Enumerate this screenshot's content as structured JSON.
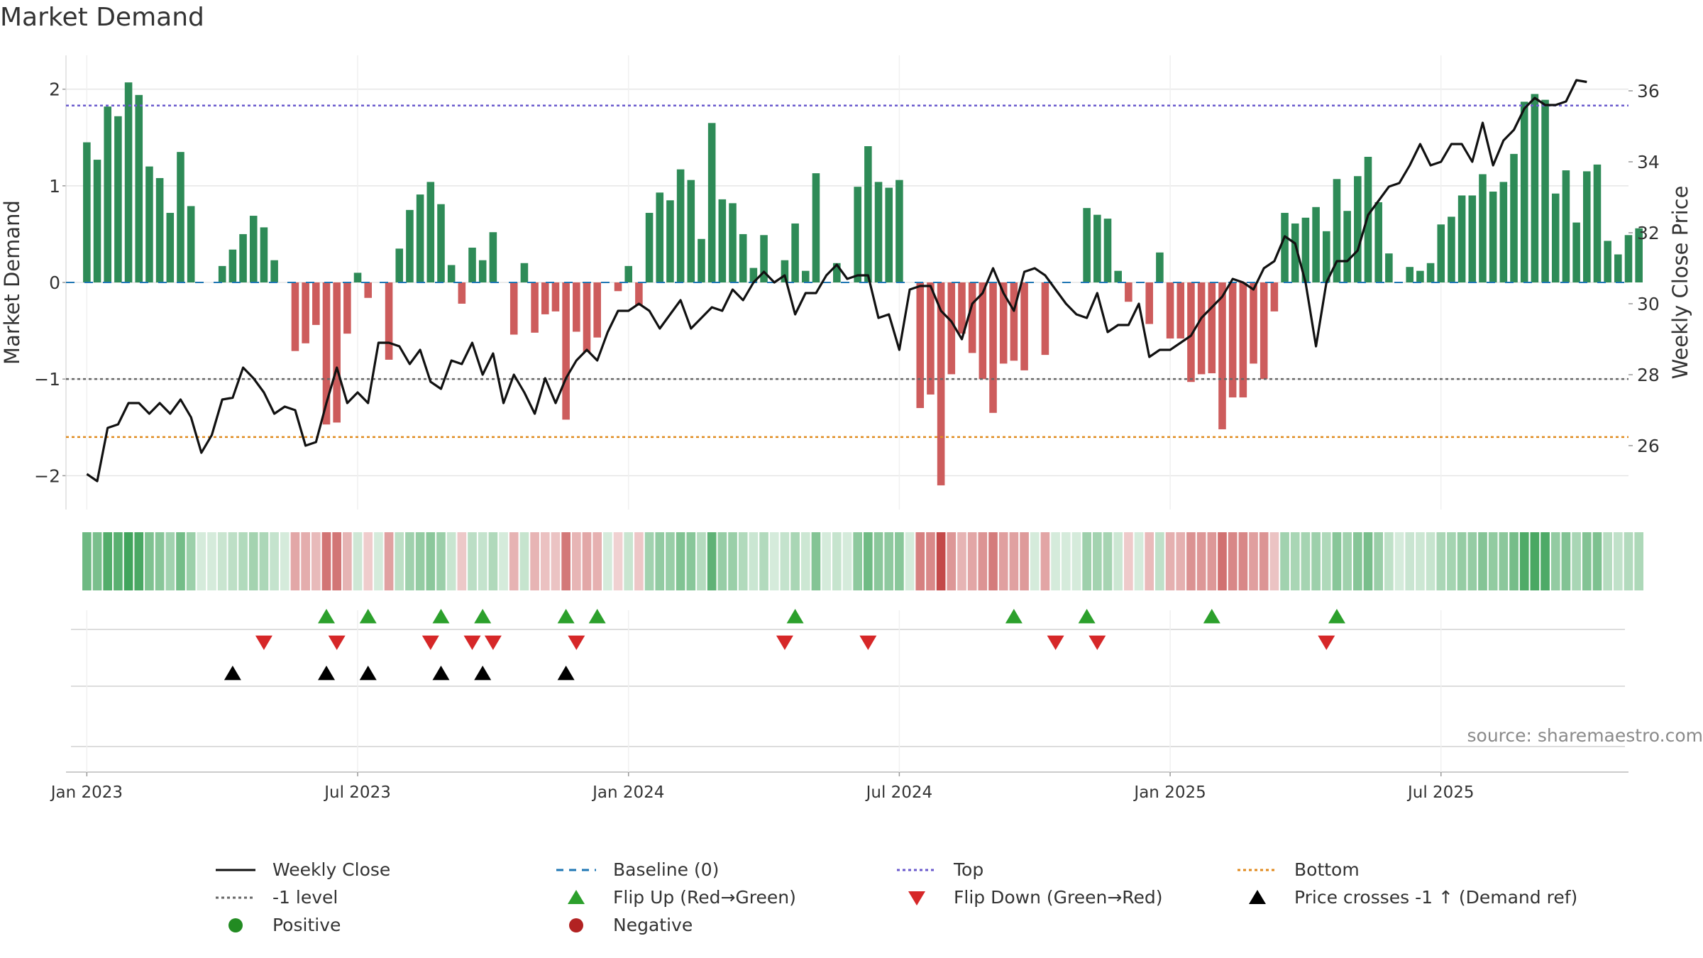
{
  "title": "Market Demand",
  "source": "source: sharemaestro.com",
  "chart_data": {
    "type": "bar+line",
    "title": "Market Demand",
    "xlabel": "",
    "ylabel_left": "Market Demand",
    "ylabel_right": "Weekly Close Price",
    "x_tick_labels": [
      "Jan 2023",
      "Jul 2023",
      "Jan 2024",
      "Jul 2024",
      "Jan 2025",
      "Jul 2025"
    ],
    "x_tick_weeks": [
      0,
      26,
      52,
      78,
      104,
      130
    ],
    "first_week_offset": -1.5,
    "ylim_left": [
      -2.35,
      2.35
    ],
    "y_ticks_left": [
      2,
      1,
      0,
      -1,
      -2
    ],
    "y_tick_labels_left": [
      "2",
      "1",
      "0",
      "−1",
      "−2"
    ],
    "ylim_right": [
      24.2,
      37.0
    ],
    "y_ticks_right": [
      36,
      34,
      32,
      30,
      28,
      26
    ],
    "demand": [
      1.45,
      1.27,
      1.82,
      1.72,
      2.07,
      1.94,
      1.2,
      1.08,
      0.72,
      1.35,
      0.79,
      0.0,
      0.0,
      0.17,
      0.34,
      0.5,
      0.69,
      0.57,
      0.23,
      0.0,
      -0.71,
      -0.63,
      -0.44,
      -1.47,
      -1.45,
      -0.53,
      0.1,
      -0.16,
      0.0,
      -0.8,
      0.35,
      0.75,
      0.91,
      1.04,
      0.81,
      0.18,
      -0.22,
      0.36,
      0.23,
      0.52,
      0.0,
      -0.54,
      0.2,
      -0.52,
      -0.33,
      -0.3,
      -1.42,
      -0.51,
      -0.72,
      -0.57,
      0.0,
      -0.09,
      0.17,
      -0.24,
      0.72,
      0.93,
      0.85,
      1.17,
      1.06,
      0.45,
      1.65,
      0.86,
      0.82,
      0.5,
      0.15,
      0.49,
      0.0,
      0.23,
      0.61,
      0.12,
      1.13,
      0.0,
      0.2,
      0.0,
      0.99,
      1.41,
      1.04,
      0.98,
      1.06,
      0.0,
      -1.3,
      -1.16,
      -2.1,
      -0.95,
      -0.53,
      -0.73,
      -1.0,
      -1.35,
      -0.84,
      -0.81,
      -0.91,
      -0.0,
      -0.75,
      0.0,
      0.0,
      0.0,
      0.77,
      0.7,
      0.66,
      0.12,
      -0.2,
      0.0,
      -0.43,
      0.31,
      -0.58,
      -0.58,
      -1.03,
      -0.95,
      -0.94,
      -1.52,
      -1.19,
      -1.19,
      -0.84,
      -1.0,
      -0.3,
      0.72,
      0.61,
      0.67,
      0.78,
      0.53,
      1.07,
      0.74,
      1.1,
      1.3,
      0.83,
      0.3,
      0.0,
      0.16,
      0.12,
      0.2,
      0.6,
      0.68,
      0.9,
      0.9,
      1.12,
      0.94,
      1.04,
      1.33,
      1.87,
      1.95,
      1.89,
      0.92,
      1.16,
      0.62,
      1.15,
      1.22,
      0.43,
      0.29,
      0.49,
      0.56
    ],
    "weekly_close": [
      25.2,
      25.0,
      26.5,
      26.6,
      27.2,
      27.2,
      26.9,
      27.2,
      26.9,
      27.3,
      26.8,
      25.8,
      26.3,
      27.3,
      27.35,
      28.2,
      27.9,
      27.5,
      26.9,
      27.1,
      27.0,
      26.0,
      26.1,
      27.2,
      28.2,
      27.2,
      27.5,
      27.2,
      28.9,
      28.9,
      28.8,
      28.3,
      28.7,
      27.8,
      27.6,
      28.4,
      28.3,
      28.9,
      28.0,
      28.6,
      27.2,
      28.0,
      27.5,
      26.9,
      27.9,
      27.2,
      27.9,
      28.4,
      28.7,
      28.4,
      29.2,
      29.8,
      29.8,
      30.0,
      29.8,
      29.3,
      29.7,
      30.1,
      29.3,
      29.6,
      29.9,
      29.8,
      30.4,
      30.1,
      30.6,
      30.9,
      30.6,
      30.8,
      29.7,
      30.3,
      30.3,
      30.8,
      31.1,
      30.7,
      30.8,
      30.8,
      29.6,
      29.7,
      28.7,
      30.4,
      30.5,
      30.5,
      29.8,
      29.5,
      29.0,
      30.0,
      30.3,
      31.0,
      30.3,
      29.8,
      30.9,
      31.0,
      30.8,
      30.4,
      30.0,
      29.7,
      29.6,
      30.3,
      29.2,
      29.4,
      29.4,
      30.0,
      28.5,
      28.7,
      28.7,
      28.9,
      29.1,
      29.6,
      29.9,
      30.2,
      30.7,
      30.6,
      30.4,
      31.0,
      31.2,
      31.9,
      31.7,
      30.6,
      28.8,
      30.6,
      31.2,
      31.2,
      31.5,
      32.5,
      32.9,
      33.3,
      33.4,
      33.9,
      34.5,
      33.9,
      34.0,
      34.5,
      34.5,
      34.0,
      35.1,
      33.9,
      34.6,
      34.9,
      35.5,
      35.8,
      35.6,
      35.6,
      35.7,
      36.3,
      36.25
    ],
    "reference_lines": {
      "baseline": 0,
      "top": 1.83,
      "minus_one": -1,
      "bottom": -1.6
    },
    "heat_strip": {
      "description": "per-week color strip mirroring demand sign and magnitude",
      "positive_color": "#3fa35a",
      "negative_color": "#c44a4a"
    },
    "flip_up_weeks": [
      23,
      27,
      34,
      38,
      46,
      49,
      68,
      89,
      96,
      108,
      120
    ],
    "flip_down_weeks": [
      17,
      24,
      33,
      37,
      39,
      47,
      67,
      75,
      93,
      97,
      119
    ],
    "price_cross_up_weeks": [
      14,
      23,
      27,
      34,
      38,
      46
    ],
    "legend": [
      {
        "label": "Weekly Close",
        "kind": "line",
        "color": "#111111",
        "dash": "solid"
      },
      {
        "label": "Baseline (0)",
        "kind": "line",
        "color": "#1f77b4",
        "dash": "dashed"
      },
      {
        "label": "Top",
        "kind": "line",
        "color": "#6a5acd",
        "dash": "dotted"
      },
      {
        "label": "Bottom",
        "kind": "line",
        "color": "#e08a1e",
        "dash": "dotted"
      },
      {
        "label": "-1 level",
        "kind": "line",
        "color": "#666666",
        "dash": "dotted"
      },
      {
        "label": "Flip Up (Red→Green)",
        "kind": "triangle-up",
        "color": "#2ca02c"
      },
      {
        "label": "Flip Down (Green→Red)",
        "kind": "triangle-down",
        "color": "#d62728"
      },
      {
        "label": "Price crosses -1 ↑ (Demand ref)",
        "kind": "triangle-up",
        "color": "#000000"
      },
      {
        "label": "Positive",
        "kind": "circle",
        "color": "#228b22"
      },
      {
        "label": "Negative",
        "kind": "circle",
        "color": "#b22222"
      }
    ]
  },
  "colors": {
    "positive_bar": "#2e8b57",
    "negative_bar": "#cd5c5c",
    "price_line": "#111111",
    "grid": "#e6e6e6",
    "axis_text": "#333333"
  }
}
